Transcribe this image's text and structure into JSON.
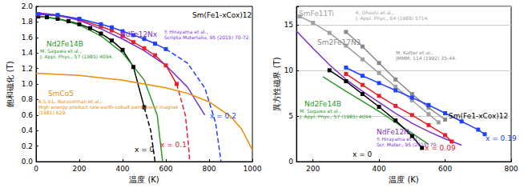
{
  "chart_data": [
    {
      "type": "line",
      "x_label": "温度 (K)",
      "y_label": "飽和磁化 (T)",
      "xlim": [
        0,
        1000
      ],
      "xticks": [
        0,
        200,
        400,
        600,
        800,
        1000
      ],
      "ylim": [
        0,
        2
      ],
      "yticks": [
        {
          "value": 0,
          "label": "0.0"
        },
        0.2,
        0.4,
        0.6,
        0.8,
        {
          "value": 1,
          "label": "1.0"
        },
        1.2,
        1.4,
        1.6,
        1.8,
        {
          "value": 2,
          "label": "2.0"
        }
      ],
      "grid": false,
      "series": [
        {
          "name": "x = 0",
          "color": "#000000",
          "marker": "square",
          "line_style": "solid",
          "values": [
            [
              10,
              1.87
            ],
            [
              50,
              1.86
            ],
            [
              100,
              1.84
            ],
            [
              150,
              1.81
            ],
            [
              200,
              1.77
            ],
            [
              250,
              1.72
            ],
            [
              300,
              1.65
            ],
            [
              350,
              1.56
            ],
            [
              400,
              1.44
            ],
            [
              450,
              1.22
            ],
            [
              500,
              0.7
            ]
          ],
          "extrapolated": [
            [
              530,
              0.4
            ],
            [
              550,
              0
            ]
          ]
        },
        {
          "name": "x = 0.1",
          "color": "#e8202a",
          "marker": "square",
          "line_style": "solid",
          "values": [
            [
              10,
              1.9
            ],
            [
              100,
              1.88
            ],
            [
              200,
              1.83
            ],
            [
              300,
              1.74
            ],
            [
              350,
              1.69
            ],
            [
              400,
              1.62
            ],
            [
              450,
              1.54
            ],
            [
              500,
              1.46
            ],
            [
              550,
              1.37
            ],
            [
              600,
              1.24
            ],
            [
              650,
              1.0
            ]
          ],
          "extrapolated": [
            [
              690,
              0.6
            ],
            [
              705,
              0.2
            ],
            [
              710,
              0
            ]
          ]
        },
        {
          "name": "x = 0.2",
          "color": "#2040ff",
          "marker": "square",
          "line_style": "solid",
          "values": [
            [
              10,
              1.9
            ],
            [
              100,
              1.89
            ],
            [
              200,
              1.84
            ],
            [
              300,
              1.77
            ],
            [
              350,
              1.73
            ],
            [
              400,
              1.68
            ],
            [
              450,
              1.63
            ],
            [
              500,
              1.58
            ],
            [
              550,
              1.52
            ],
            [
              600,
              1.45
            ]
          ],
          "extrapolated": [
            [
              700,
              1.27
            ],
            [
              780,
              0.95
            ],
            [
              830,
              0.5
            ],
            [
              855,
              0
            ]
          ]
        },
        {
          "name": "Nd2Fe14B",
          "color": "#2a9a2a",
          "marker": "none",
          "line_style": "solid",
          "values": [
            [
              0,
              1.87
            ],
            [
              100,
              1.84
            ],
            [
              200,
              1.76
            ],
            [
              300,
              1.62
            ],
            [
              400,
              1.4
            ],
            [
              500,
              1.05
            ],
            [
              560,
              0.6
            ],
            [
              585,
              0
            ]
          ],
          "citation": "M. Sagawa et al.,\nJ. Appl. Phys., 57 (1985) 4094."
        },
        {
          "name": "NdFe12Nx",
          "color": "#7b2fd6",
          "marker": "none",
          "line_style": "solid",
          "values": [
            [
              0,
              1.92
            ],
            [
              100,
              1.89
            ],
            [
              200,
              1.82
            ],
            [
              300,
              1.71
            ],
            [
              400,
              1.58
            ],
            [
              500,
              1.43
            ],
            [
              600,
              1.24
            ],
            [
              700,
              0.96
            ],
            [
              780,
              0.6
            ]
          ],
          "citation": "Y. Hirayama et al.,\nScripta Materialia, 95 (2015) 70-72."
        },
        {
          "name": "SmCo5",
          "color": "#f08a00",
          "marker": "none",
          "line_style": "solid",
          "values": [
            [
              0,
              1.14
            ],
            [
              200,
              1.11
            ],
            [
              400,
              1.05
            ],
            [
              600,
              0.95
            ],
            [
              700,
              0.88
            ],
            [
              800,
              0.77
            ],
            [
              900,
              0.58
            ],
            [
              950,
              0.42
            ],
            [
              1000,
              0.15
            ]
          ],
          "citation": "K.S.V.L. Narasimhan et al.,\nHigh energy product rare earth-cobalt permanent magnet\n(1981) 629."
        }
      ],
      "annotations": [
        {
          "text": "Sm(Fe1-xCox)12",
          "color": "#000000"
        }
      ]
    },
    {
      "type": "line",
      "x_label": "温度 (K)",
      "y_label": "異方性磁界 (T)",
      "xlim": [
        150,
        800
      ],
      "xticks": [
        200,
        400,
        600,
        800
      ],
      "ylim": [
        0,
        17
      ],
      "yticks": [
        0,
        5,
        10,
        15
      ],
      "grid": true,
      "series": [
        {
          "name": "SmFe11Ti",
          "color": "#a0a0a0",
          "marker": "square",
          "line_style": "solid",
          "values": [
            [
              160,
              15.9
            ],
            [
              200,
              15.2
            ],
            [
              250,
              14.1
            ],
            [
              300,
              12.7
            ],
            [
              350,
              11.2
            ],
            [
              400,
              9.7
            ],
            [
              450,
              8.2
            ],
            [
              500,
              6.7
            ],
            [
              550,
              5.2
            ],
            [
              580,
              4.3
            ]
          ],
          "citation": "K. Ohashi et al.,\nJ. Appl. Phys., 64 (1988) 5714."
        },
        {
          "name": "Sm2Fe17N3",
          "color": "#888888",
          "marker": "square",
          "line_style": "solid",
          "values": [
            [
              300,
              14.2
            ],
            [
              350,
              12.6
            ],
            [
              400,
              10.8
            ],
            [
              450,
              9.0
            ],
            [
              500,
              7.4
            ],
            [
              550,
              5.9
            ],
            [
              600,
              4.6
            ]
          ],
          "citation": "M. Katter et al.,\nJMMM, 114 (1992) 35-44."
        },
        {
          "name": "Nd2Fe14B",
          "color": "#2a9a2a",
          "marker": "none",
          "line_style": "solid",
          "values": [
            [
              230,
              9.3
            ],
            [
              300,
              7.7
            ],
            [
              350,
              6.6
            ],
            [
              400,
              5.5
            ],
            [
              450,
              4.3
            ],
            [
              500,
              3.1
            ],
            [
              550,
              1.9
            ]
          ],
          "citation": "M. Sagawa et al.,\nJ. Appl. Phys., 57 (1985) 4094."
        },
        {
          "name": "NdFe12N",
          "color": "#7b2fd6",
          "marker": "none",
          "line_style": "solid",
          "values": [
            [
              150,
              14.3
            ],
            [
              200,
              12.4
            ],
            [
              250,
              10.6
            ],
            [
              300,
              9.0
            ],
            [
              350,
              7.7
            ],
            [
              400,
              6.5
            ],
            [
              450,
              5.3
            ],
            [
              500,
              4.2
            ],
            [
              550,
              3.3
            ],
            [
              600,
              2.5
            ],
            [
              650,
              1.8
            ]
          ],
          "citation": "Y. Hirayama et al.,\nScr. Mater., 95 (2015) 70."
        },
        {
          "name": "x = 0",
          "color": "#000000",
          "marker": "square",
          "line_style": "solid",
          "values": [
            [
              250,
              10.0
            ],
            [
              300,
              8.8
            ],
            [
              350,
              7.4
            ],
            [
              400,
              6.0
            ],
            [
              450,
              4.5
            ],
            [
              500,
              2.8
            ],
            [
              530,
              1.5
            ]
          ]
        },
        {
          "name": "x = 0.09",
          "color": "#e8202a",
          "marker": "square",
          "line_style": "solid",
          "values": [
            [
              300,
              9.6
            ],
            [
              350,
              8.4
            ],
            [
              400,
              7.2
            ],
            [
              450,
              6.1
            ],
            [
              500,
              5.1
            ],
            [
              550,
              4.0
            ],
            [
              600,
              2.9
            ],
            [
              620,
              2.2
            ]
          ]
        },
        {
          "name": "x = 0.19",
          "color": "#2040ff",
          "marker": "square",
          "line_style": "solid",
          "values": [
            [
              300,
              10.3
            ],
            [
              350,
              9.4
            ],
            [
              400,
              8.6
            ],
            [
              450,
              7.8
            ],
            [
              500,
              7.0
            ],
            [
              550,
              6.2
            ],
            [
              600,
              5.3
            ],
            [
              650,
              4.4
            ],
            [
              700,
              3.5
            ],
            [
              720,
              3.0
            ]
          ]
        }
      ],
      "annotations": [
        {
          "text": "Sm(Fe1-xCox)12",
          "color": "#000000"
        }
      ]
    }
  ]
}
